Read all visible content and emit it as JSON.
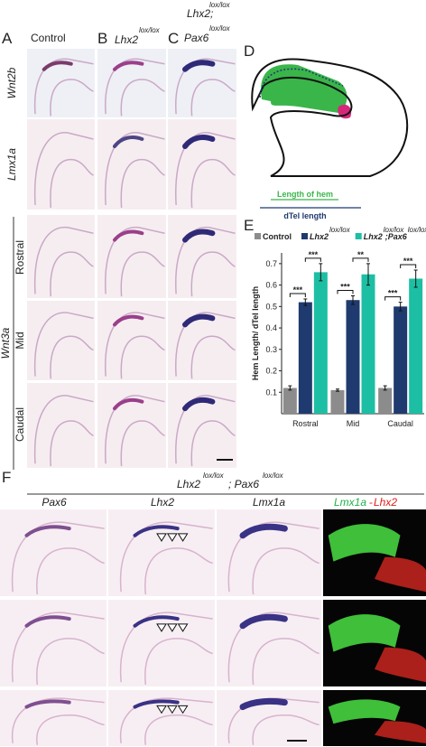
{
  "panel_labels": [
    "A",
    "B",
    "C",
    "D",
    "E",
    "F"
  ],
  "top_columns": {
    "control": "Control",
    "lhx2": [
      "Lhx2",
      "lox/lox"
    ],
    "double": [
      "Lhx2;",
      "lox/lox",
      "Pax6",
      "lox/lox"
    ]
  },
  "row_labels": {
    "wnt2b": "Wnt2b",
    "lmx1a": "Lmx1a",
    "wnt3a": "Wnt3a",
    "levels": [
      "Rostral",
      "Mid",
      "Caudal"
    ]
  },
  "schematic": {
    "hem": "Length of hem",
    "dtel": "dTel length"
  },
  "chart_data": {
    "type": "bar",
    "categories": [
      "Rostral",
      "Mid",
      "Caudal"
    ],
    "ylabel": "Hem Length/ dTel length",
    "ylim": [
      0,
      0.75
    ],
    "yticks": [
      0.1,
      0.2,
      0.3,
      0.4,
      0.5,
      0.6,
      0.7
    ],
    "series": [
      {
        "name": "Control",
        "color": "#8c8c8c",
        "values": [
          0.12,
          0.11,
          0.12
        ],
        "errors": [
          0.01,
          0.005,
          0.01
        ]
      },
      {
        "name": "Lhx2",
        "superscript": "lox/lox",
        "color": "#1f3a6e",
        "values": [
          0.52,
          0.53,
          0.5
        ],
        "errors": [
          0.015,
          0.02,
          0.02
        ]
      },
      {
        "name": "Lhx2",
        "superscript": "lox/lox",
        "suffix": ";Pax6",
        "suffix_superscript": "lox/lox",
        "color": "#1cbfa3",
        "values": [
          0.66,
          0.65,
          0.63
        ],
        "errors": [
          0.04,
          0.05,
          0.04
        ]
      }
    ],
    "significance": [
      [
        "***",
        "***"
      ],
      [
        "***",
        "**"
      ],
      [
        "***",
        "***"
      ]
    ]
  },
  "panel_f": {
    "header": [
      "Lhx2",
      "lox/lox",
      "; Pax6",
      "lox/lox"
    ],
    "columns": [
      "Pax6",
      "Lhx2",
      "Lmx1a"
    ],
    "merge": [
      "Lmx1a",
      "-",
      "Lhx2"
    ]
  }
}
